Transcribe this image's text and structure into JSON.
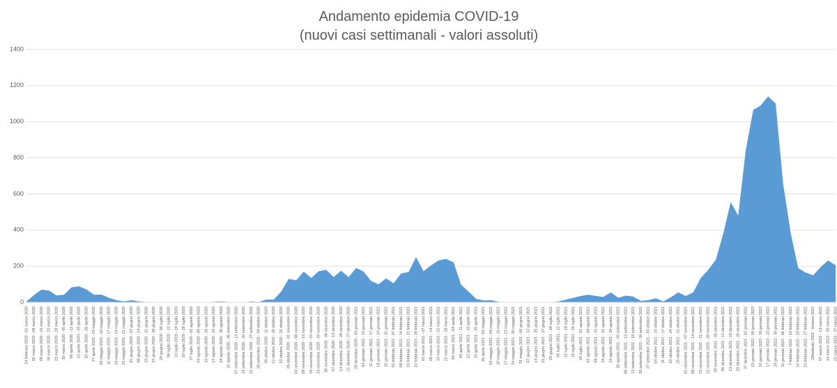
{
  "chart_data": {
    "type": "area",
    "title": "Andamento epidemia COVID-19",
    "subtitle": "(nuovi casi settimanali - valori assoluti)",
    "color": "#5b9bd5",
    "grid": true,
    "ylim": [
      0,
      1400
    ],
    "yticks": [
      0,
      200,
      400,
      600,
      800,
      1000,
      1200,
      1400
    ],
    "categories": [
      "24 febbraio 2020 - 01 marzo 2020",
      "02 marzo 2020 - 08 marzo 2020",
      "09 marzo 2020 - 15 marzo 2020",
      "16 marzo 2020 - 22 marzo 2020",
      "23 marzo 2020 - 29 marzo 2020",
      "30 marzo 2020 - 05 aprile 2020",
      "06 aprile 2020 - 12 aprile 2020",
      "13 aprile 2020 - 19 aprile 2020",
      "20 aprile 2020 - 26 aprile 2020",
      "27 aprile 2020 - 03 maggio 2020",
      "04 maggio 2020 - 10 maggio 2020",
      "11 maggio 2020 - 17 maggio 2020",
      "18 maggio 2020 - 24 maggio 2020",
      "25 maggio 2020 - 31 maggio 2020",
      "01 giugno 2020 - 07 giugno 2020",
      "08 giugno 2020 - 14 giugno 2020",
      "15 giugno 2020 - 21 giugno 2020",
      "22 giugno 2020 - 28 giugno 2020",
      "29 giugno 2020 - 05 luglio 2020",
      "06 luglio 2020 - 12 luglio 2020",
      "13 luglio 2020 - 19 luglio 2020",
      "20 luglio 2020 - 26 luglio 2020",
      "27 luglio 2020 - 02 agosto 2020",
      "03 agosto 2020 - 09 agosto 2020",
      "10 agosto 2020 - 16 agosto 2020",
      "17 agosto 2020 - 23 agosto 2020",
      "24 agosto 2020 - 30 agosto 2020",
      "31 agosto 2020 - 06 settembre 2020",
      "07 settembre 2020 - 13 settembre 2020",
      "14 settembre 2020 - 20 settembre 2020",
      "21 settembre 2020 - 27 settembre 2020",
      "28 settembre 2020 - 04 ottobre 2020",
      "05 ottobre 2020 - 11 ottobre 2020",
      "12 ottobre 2020 - 18 ottobre 2020",
      "19 ottobre 2020 - 25 ottobre 2020",
      "26 ottobre 2020 - 01 novembre 2020",
      "02 novembre 2020 - 08 novembre 2020",
      "09 novembre 2020 - 15 novembre 2020",
      "16 novembre 2020 - 22 novembre 2020",
      "23 novembre 2020 - 29 novembre 2020",
      "30 novembre 2020 - 06 dicembre 2020",
      "07 dicembre 2020 - 13 dicembre 2020",
      "14 dicembre 2020 - 20 dicembre 2020",
      "21 dicembre 2020 - 27 dicembre 2020",
      "28 dicembre 2020 - 03 gennaio 2021",
      "04 gennaio 2021 - 10 gennaio 2021",
      "11 gennaio 2021 - 17 gennaio 2021",
      "18 gennaio 2021 - 24 gennaio 2021",
      "25 gennaio 2021 - 31 gennaio 2021",
      "01 febbraio 2021 - 07 febbraio 2021",
      "08 febbraio 2021 - 14 febbraio 2021",
      "15 febbraio 2021 - 21 febbraio 2021",
      "22 febbraio 2021 - 28 febbraio 2021",
      "01 marzo 2021 - 07 marzo 2021",
      "08 marzo 2021 - 14 marzo 2021",
      "15 marzo 2021 - 21 marzo 2021",
      "22 marzo 2021 - 28 marzo 2021",
      "29 marzo 2021 - 04 aprile 2021",
      "05 aprile 2021 - 11 aprile 2021",
      "12 aprile 2021 - 18 aprile 2021",
      "19 aprile 2021 - 25 aprile 2021",
      "26 aprile 2021 - 02 maggio 2021",
      "03 maggio 2021 - 09 maggio 2021",
      "10 maggio 2021 - 16 maggio 2021",
      "17 maggio 2021 - 23 maggio 2021",
      "24 maggio 2021 - 30 maggio 2021",
      "31 maggio 2021 - 06 giugno 2021",
      "07 giugno 2021 - 13 giugno 2021",
      "14 giugno 2021 - 20 giugno 2021",
      "21 giugno 2021 - 27 giugno 2021",
      "28 giugno 2021 - 04 luglio 2021",
      "05 luglio 2021 - 11 luglio 2021",
      "12 luglio 2021 - 18 luglio 2021",
      "19 luglio 2021 - 25 luglio 2021",
      "26 luglio 2021 - 01 agosto 2021",
      "02 agosto 2021 - 08 agosto 2021",
      "09 agosto 2021 - 15 agosto 2021",
      "16 agosto 2021 - 22 agosto 2021",
      "23 agosto 2021 - 29 agosto 2021",
      "30 agosto 2021 - 05 settembre 2021",
      "06 settembre 2021 - 12 settembre 2021",
      "13 settembre 2021 - 19 settembre 2021",
      "20 settembre 2021 - 26 settembre 2021",
      "27 settembre 2021 - 03 ottobre 2021",
      "04 ottobre 2021 - 10 ottobre 2021",
      "11 ottobre 2021 - 17 ottobre 2021",
      "18 ottobre 2021 - 24 ottobre 2021",
      "25 ottobre 2021 - 31 ottobre 2021",
      "01 novembre 2021 - 07 novembre 2021",
      "08 novembre 2021 - 14 novembre 2021",
      "15 novembre 2021 - 21 novembre 2021",
      "22 novembre 2021 - 28 novembre 2021",
      "29 novembre 2021 - 05 dicembre 2021",
      "06 dicembre 2021 - 12 dicembre 2021",
      "13 dicembre 2021 - 19 dicembre 2021",
      "20 dicembre 2021 - 26 dicembre 2021",
      "27 dicembre 2021 - 02 gennaio 2022",
      "03 gennaio 2022 - 09 gennaio 2022",
      "10 gennaio 2022 - 16 gennaio 2022",
      "17 gennaio 2022 - 23 gennaio 2022",
      "24 gennaio 2022 - 30 gennaio 2022",
      "31 gennaio 2022 - 06 febbraio 2022",
      "7 febbraio 2022 - 13 febbraio 2022",
      "14 febbraio 2022 - 20 febbraio 2022",
      "21 febbraio 2022 - 27 febbraio 2022",
      "28febbraio 2022 - 6marzo 2022",
      "07 marzo 2022 - 13 marzo 2022",
      "14 marzo 2022 - 20 marzo 2022",
      "21 marzo 2022 - 27 marzo 2022"
    ],
    "values": [
      5,
      40,
      70,
      65,
      38,
      42,
      83,
      88,
      72,
      42,
      43,
      25,
      12,
      5,
      12,
      5,
      2,
      0,
      0,
      0,
      0,
      0,
      0,
      0,
      0,
      3,
      5,
      2,
      0,
      0,
      5,
      2,
      15,
      15,
      60,
      130,
      122,
      170,
      135,
      172,
      180,
      140,
      175,
      140,
      190,
      170,
      118,
      100,
      133,
      105,
      160,
      168,
      250,
      172,
      205,
      232,
      240,
      222,
      98,
      60,
      20,
      10,
      12,
      3,
      0,
      0,
      0,
      0,
      0,
      0,
      0,
      5,
      15,
      25,
      35,
      42,
      35,
      30,
      55,
      25,
      37,
      32,
      8,
      12,
      22,
      5,
      28,
      55,
      35,
      55,
      135,
      180,
      235,
      380,
      555,
      480,
      840,
      1065,
      1090,
      1140,
      1100,
      655,
      385,
      190,
      165,
      150,
      195,
      232,
      205
    ]
  }
}
